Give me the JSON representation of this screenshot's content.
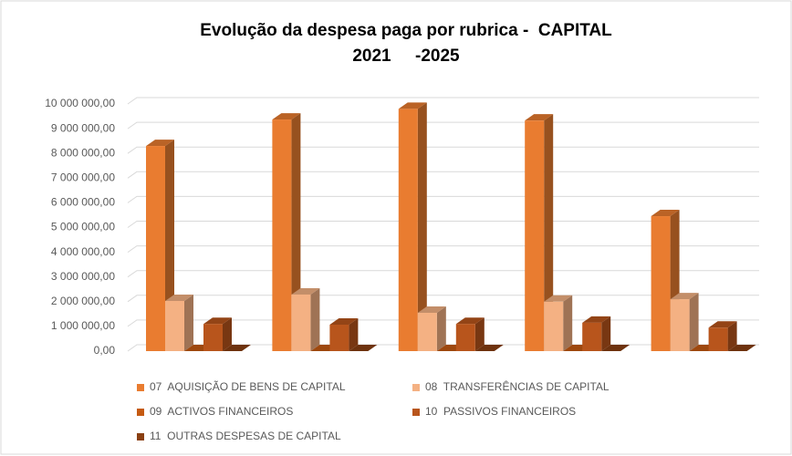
{
  "chart_data": {
    "type": "bar3d",
    "title": "Evolução da despesa paga por rubrica -  CAPITAL",
    "subtitle": "2021     -2025",
    "categories": [
      null,
      null,
      null,
      null,
      null
    ],
    "series": [
      {
        "name": "07  AQUISIÇÃO DE BENS DE CAPITAL",
        "color": "#e97c30",
        "values": [
          8300000,
          9370000,
          9800000,
          9330000,
          5460000
        ]
      },
      {
        "name": "08  TRANSFERÊNCIAS DE CAPITAL",
        "color": "#f4b183",
        "values": [
          2030000,
          2290000,
          1550000,
          2000000,
          2100000
        ]
      },
      {
        "name": "09  ACTIVOS FINANCEIROS",
        "color": "#c55a11",
        "values": [
          0,
          0,
          0,
          0,
          0
        ]
      },
      {
        "name": "10  PASSIVOS FINANCEIROS",
        "color": "#b8551c",
        "values": [
          1100000,
          1070000,
          1100000,
          1150000,
          950000
        ]
      },
      {
        "name": "11  OUTRAS DESPESAS DE CAPITAL",
        "color": "#8a3f12",
        "values": [
          0,
          0,
          0,
          0,
          0
        ]
      }
    ],
    "ylim": [
      0,
      10000000
    ],
    "yticks": [
      {
        "value": 0,
        "label": "0,00"
      },
      {
        "value": 1000000,
        "label": "1 000 000,00"
      },
      {
        "value": 2000000,
        "label": "2 000 000,00"
      },
      {
        "value": 3000000,
        "label": "3 000 000,00"
      },
      {
        "value": 4000000,
        "label": "4 000 000,00"
      },
      {
        "value": 5000000,
        "label": "5 000 000,00"
      },
      {
        "value": 6000000,
        "label": "6 000 000,00"
      },
      {
        "value": 7000000,
        "label": "7 000 000,00"
      },
      {
        "value": 8000000,
        "label": "8 000 000,00"
      },
      {
        "value": 9000000,
        "label": "9 000 000,00"
      },
      {
        "value": 10000000,
        "label": "10 000 000,00"
      }
    ],
    "grid": true,
    "legend": "bottom"
  }
}
